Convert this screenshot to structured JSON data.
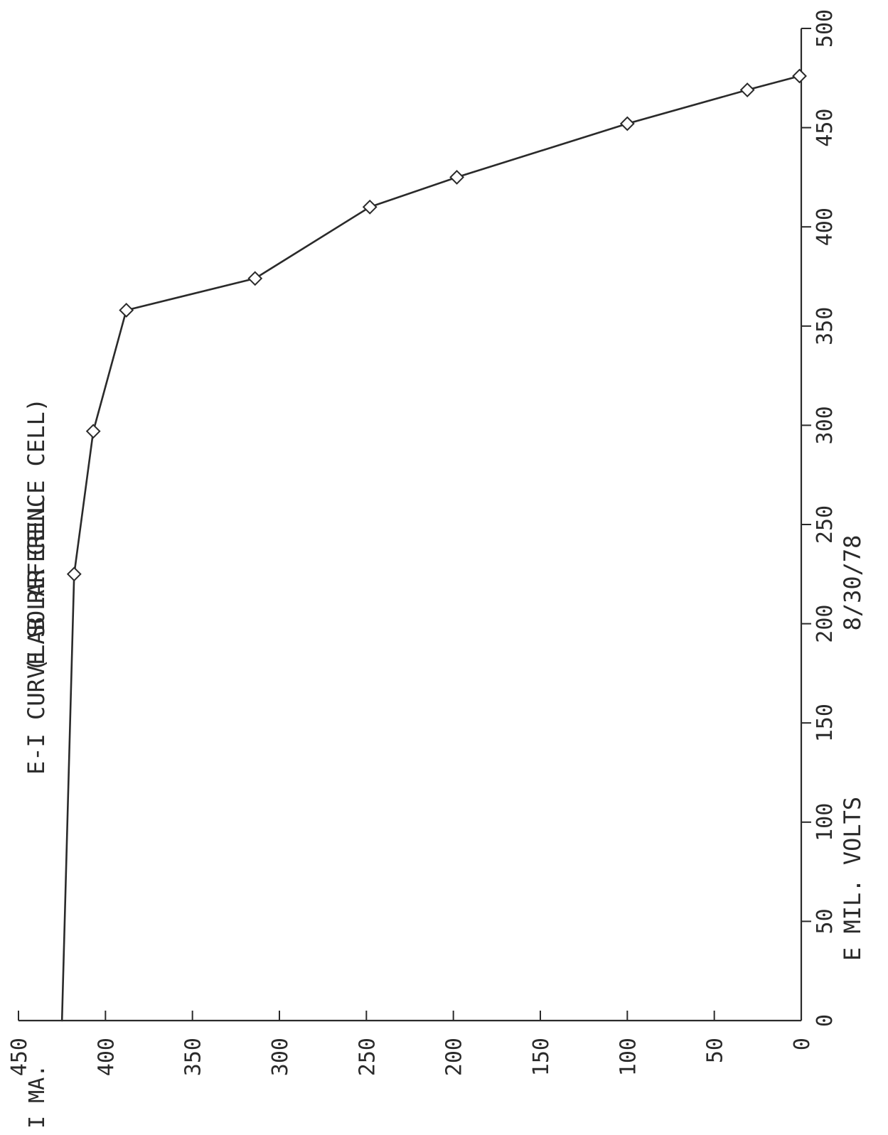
{
  "chart_data": {
    "type": "line",
    "title": "E-I CURVE SOLAR CELL",
    "subtitle": "(LAB REFERENCE CELL)",
    "date": "8/30/78",
    "xlabel": "E MIL. VOLTS",
    "ylabel": "I MA.",
    "xlim": [
      0,
      500
    ],
    "ylim": [
      0,
      450
    ],
    "x_ticks": [
      0,
      50,
      100,
      150,
      200,
      250,
      300,
      350,
      400,
      450,
      500
    ],
    "x_tick_labels": [
      "0",
      "50",
      "100",
      "150",
      "200",
      "250",
      "300",
      "350",
      "400",
      "450",
      "500"
    ],
    "y_ticks": [
      0,
      50,
      100,
      150,
      200,
      250,
      300,
      350,
      400,
      450
    ],
    "y_tick_labels": [
      "0",
      "50",
      "100",
      "150",
      "200",
      "250",
      "300",
      "350",
      "400",
      "450"
    ],
    "grid": false,
    "series": [
      {
        "x": [
          0,
          225,
          297,
          358,
          374,
          410,
          425,
          452,
          469,
          476
        ],
        "y": [
          425,
          418,
          407,
          388,
          314,
          248,
          198,
          100,
          31,
          1
        ]
      }
    ],
    "marker": "diamond",
    "line_color": "#2a2a2a"
  }
}
